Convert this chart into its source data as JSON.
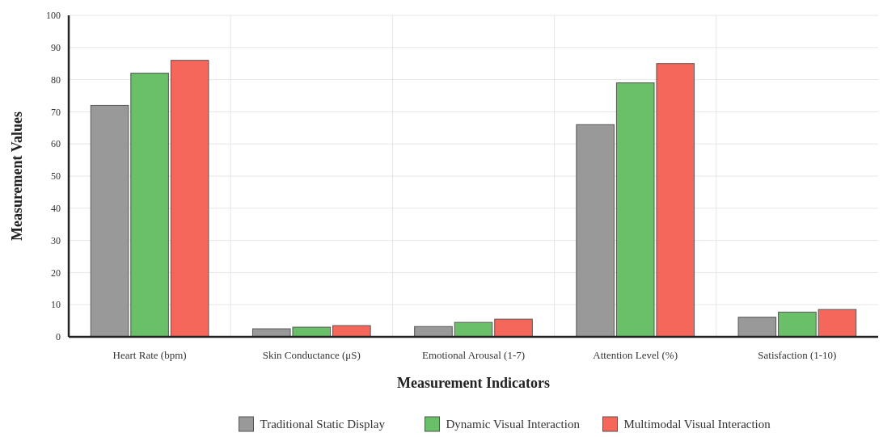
{
  "chart_data": {
    "type": "bar",
    "xlabel": "Measurement Indicators",
    "ylabel": "Measurement Values",
    "categories": [
      "Heart Rate (bpm)",
      "Skin Conductance (μS)",
      "Emotional Arousal (1-7)",
      "Attention Level (%)",
      "Satisfaction (1-10)"
    ],
    "series": [
      {
        "name": "Traditional Static Display",
        "color": "#999999",
        "values": [
          72,
          2.5,
          3.2,
          66,
          6.1
        ]
      },
      {
        "name": "Dynamic Visual Interaction",
        "color": "#6abf69",
        "values": [
          82,
          3.0,
          4.5,
          79,
          7.7
        ]
      },
      {
        "name": "Multimodal Visual Interaction",
        "color": "#f4675a",
        "values": [
          86,
          3.5,
          5.5,
          85,
          8.5
        ]
      }
    ],
    "ylim": [
      0,
      100
    ],
    "yticks": [
      0,
      10,
      20,
      30,
      40,
      50,
      60,
      70,
      80,
      90,
      100
    ],
    "grid": true,
    "legend": "bottom"
  }
}
